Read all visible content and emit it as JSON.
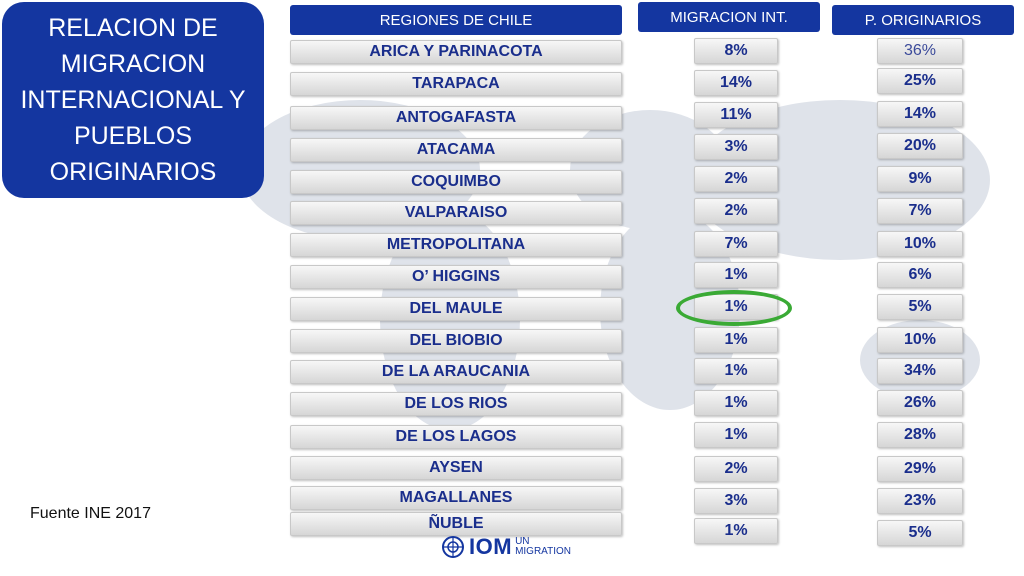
{
  "title": "RELACION DE\nMIGRACION\nINTERNACIONAL Y\nPUEBLOS\nORIGINARIOS",
  "headers": {
    "regions": "REGIONES DE CHILE",
    "migration": "MIGRACION INT.",
    "originarios": "P. ORIGINARIOS"
  },
  "rows": [
    {
      "region": "ARICA Y PARINACOTA",
      "migration": "8%",
      "originarios": "36%"
    },
    {
      "region": "TARAPACA",
      "migration": "14%",
      "originarios": "25%"
    },
    {
      "region": "ANTOGAFASTA",
      "migration": "11%",
      "originarios": "14%"
    },
    {
      "region": "ATACAMA",
      "migration": "3%",
      "originarios": "20%"
    },
    {
      "region": "COQUIMBO",
      "migration": "2%",
      "originarios": "9%"
    },
    {
      "region": "VALPARAISO",
      "migration": "2%",
      "originarios": "7%"
    },
    {
      "region": "METROPOLITANA",
      "migration": "7%",
      "originarios": "10%"
    },
    {
      "region": "O’ HIGGINS",
      "migration": "1%",
      "originarios": "6%"
    },
    {
      "region": "DEL MAULE",
      "migration": "1%",
      "originarios": "5%"
    },
    {
      "region": "DEL BIOBIO",
      "migration": "1%",
      "originarios": "10%"
    },
    {
      "region": "DE LA ARAUCANIA",
      "migration": "1%",
      "originarios": "34%"
    },
    {
      "region": "DE LOS RIOS",
      "migration": "1%",
      "originarios": "26%"
    },
    {
      "region": "DE LOS LAGOS",
      "migration": "1%",
      "originarios": "28%"
    },
    {
      "region": "AYSEN",
      "migration": "2%",
      "originarios": "29%"
    },
    {
      "region": "MAGALLANES",
      "migration": "3%",
      "originarios": "23%"
    },
    {
      "region": "ÑUBLE",
      "migration": "1%",
      "originarios": "5%"
    }
  ],
  "source": "Fuente INE 2017",
  "logo": {
    "main": "IOM",
    "line1": "UN",
    "line2": "MIGRATION"
  },
  "colors": {
    "header_bg": "#1436a0",
    "highlight": "#3aaa35",
    "text": "#1a2e8c"
  }
}
